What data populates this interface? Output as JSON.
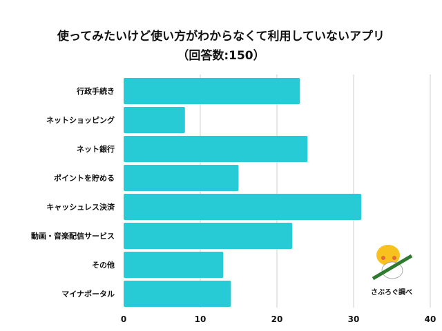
{
  "chart_data": {
    "type": "bar",
    "orientation": "horizontal",
    "title": "使ってみたいけど使い方がわからなくて利用していないアプリ",
    "subtitle": "（回答数:150）",
    "categories": [
      "行政手続き",
      "ネットショッピング",
      "ネット銀行",
      "ポイントを貯める",
      "キャッシュレス決済",
      "動画・音楽配信サービス",
      "その他",
      "マイナポータル"
    ],
    "values": [
      23,
      8,
      24,
      15,
      31,
      22,
      13,
      14
    ],
    "xlim": [
      0,
      40
    ],
    "xticks": [
      "0",
      "10",
      "20",
      "30",
      "40"
    ],
    "xlabel": "",
    "ylabel": "",
    "grid": true,
    "bar_color": "#26CBD6",
    "credit": "さぶろぐ調べ"
  }
}
